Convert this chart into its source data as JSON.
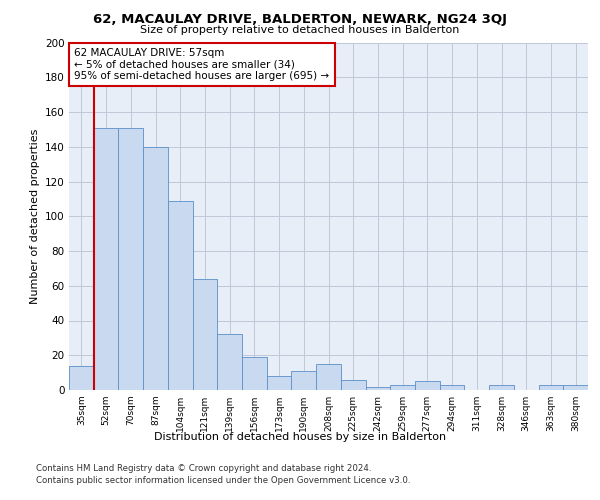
{
  "title": "62, MACAULAY DRIVE, BALDERTON, NEWARK, NG24 3QJ",
  "subtitle": "Size of property relative to detached houses in Balderton",
  "xlabel": "Distribution of detached houses by size in Balderton",
  "ylabel": "Number of detached properties",
  "bin_labels": [
    "35sqm",
    "52sqm",
    "70sqm",
    "87sqm",
    "104sqm",
    "121sqm",
    "139sqm",
    "156sqm",
    "173sqm",
    "190sqm",
    "208sqm",
    "225sqm",
    "242sqm",
    "259sqm",
    "277sqm",
    "294sqm",
    "311sqm",
    "328sqm",
    "346sqm",
    "363sqm",
    "380sqm"
  ],
  "bar_values": [
    14,
    151,
    151,
    140,
    109,
    64,
    32,
    19,
    8,
    11,
    15,
    6,
    2,
    3,
    5,
    3,
    0,
    3,
    0,
    3,
    3
  ],
  "bar_color": "#c9d9f0",
  "bar_edge_color": "#5b8fc9",
  "grid_color": "#c0c8d8",
  "background_color": "#e8eef8",
  "property_label": "62 MACAULAY DRIVE: 57sqm",
  "annotation_line1": "← 5% of detached houses are smaller (34)",
  "annotation_line2": "95% of semi-detached houses are larger (695) →",
  "annotation_box_color": "#ffffff",
  "annotation_border_color": "#cc0000",
  "vline_color": "#cc0000",
  "vline_x_index": 1.0,
  "ylim": [
    0,
    200
  ],
  "yticks": [
    0,
    20,
    40,
    60,
    80,
    100,
    120,
    140,
    160,
    180,
    200
  ],
  "footer1": "Contains HM Land Registry data © Crown copyright and database right 2024.",
  "footer2": "Contains public sector information licensed under the Open Government Licence v3.0."
}
